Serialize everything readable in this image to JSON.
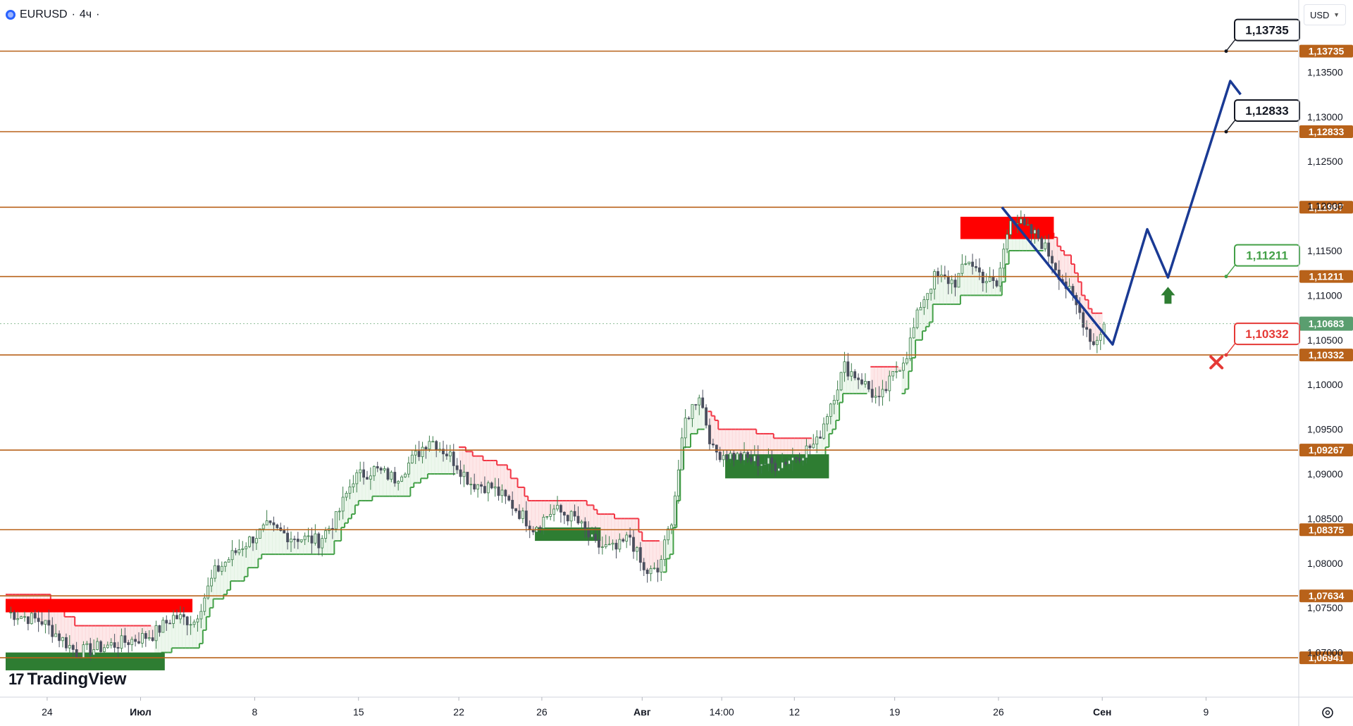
{
  "header": {
    "symbol": "EURUSD",
    "interval": "4ч",
    "currency": "USD",
    "logo_text": "TradingView",
    "logo_mark": "17"
  },
  "icons": {
    "globe": "globe-icon",
    "settings": "gear-icon",
    "caret": "chevron-down-icon",
    "arrow_up": "arrow-up-icon",
    "cross": "cross-icon"
  },
  "chart_data": {
    "type": "candlestick",
    "price_axis": {
      "min": 1.065,
      "max": 1.1415,
      "ticks": [
        "1,13500",
        "1,13000",
        "1,12500",
        "1,12000",
        "1,11500",
        "1,11000",
        "1,10500",
        "1,10000",
        "1,09500",
        "1,09000",
        "1,08500",
        "1,08000",
        "1,07500",
        "1,07000"
      ],
      "tick_values": [
        1.135,
        1.13,
        1.125,
        1.12,
        1.115,
        1.11,
        1.105,
        1.1,
        1.095,
        1.09,
        1.085,
        1.08,
        1.075,
        1.07
      ]
    },
    "time_axis": {
      "labels": [
        "24",
        "Июл",
        "8",
        "15",
        "22",
        "26",
        "Авг",
        "14:00",
        "12",
        "19",
        "26",
        "Сен",
        "9"
      ],
      "positions_in_bars": [
        12,
        39,
        72,
        102,
        131,
        155,
        184,
        207,
        228,
        257,
        287,
        317,
        347
      ]
    },
    "current_price": {
      "label": "1,10683",
      "value": 1.10683
    },
    "levels": [
      {
        "label": "1,13735",
        "value": 1.13735
      },
      {
        "label": "1,12833",
        "value": 1.12833
      },
      {
        "label": "1,11987",
        "value": 1.11987
      },
      {
        "label": "1,11211",
        "value": 1.11211
      },
      {
        "label": "1,10332",
        "value": 1.10332
      },
      {
        "label": "1,09267",
        "value": 1.09267
      },
      {
        "label": "1,08375",
        "value": 1.08375
      },
      {
        "label": "1,07634",
        "value": 1.07634
      },
      {
        "label": "1,06941",
        "value": 1.06941
      }
    ],
    "callouts": [
      {
        "label": "1,13735",
        "value": 1.13735,
        "kind": "target"
      },
      {
        "label": "1,12833",
        "value": 1.12833,
        "kind": "target"
      },
      {
        "label": "1,11211",
        "value": 1.11211,
        "kind": "entry"
      },
      {
        "label": "1,10332",
        "value": 1.10332,
        "kind": "stop"
      }
    ],
    "close_path": [
      [
        0,
        1.0745
      ],
      [
        10,
        1.0735
      ],
      [
        20,
        1.07
      ],
      [
        32,
        1.071
      ],
      [
        42,
        1.072
      ],
      [
        48,
        1.074
      ],
      [
        54,
        1.0735
      ],
      [
        60,
        1.079
      ],
      [
        68,
        1.082
      ],
      [
        75,
        1.084
      ],
      [
        82,
        1.083
      ],
      [
        90,
        1.0825
      ],
      [
        95,
        1.085
      ],
      [
        100,
        1.0895
      ],
      [
        106,
        1.0905
      ],
      [
        112,
        1.0895
      ],
      [
        118,
        1.092
      ],
      [
        122,
        1.094
      ],
      [
        128,
        1.092
      ],
      [
        134,
        1.089
      ],
      [
        140,
        1.0885
      ],
      [
        146,
        1.0865
      ],
      [
        152,
        1.084
      ],
      [
        158,
        1.086
      ],
      [
        164,
        1.085
      ],
      [
        170,
        1.082
      ],
      [
        176,
        1.0815
      ],
      [
        180,
        1.083
      ],
      [
        184,
        1.079
      ],
      [
        188,
        1.079
      ],
      [
        192,
        1.085
      ],
      [
        196,
        1.096
      ],
      [
        200,
        1.099
      ],
      [
        204,
        1.0925
      ],
      [
        210,
        1.092
      ],
      [
        216,
        1.0915
      ],
      [
        222,
        1.091
      ],
      [
        228,
        1.092
      ],
      [
        234,
        1.0935
      ],
      [
        238,
        1.098
      ],
      [
        242,
        1.102
      ],
      [
        247,
        1.1005
      ],
      [
        252,
        1.098
      ],
      [
        256,
        1.101
      ],
      [
        260,
        1.1035
      ],
      [
        264,
        1.109
      ],
      [
        268,
        1.112
      ],
      [
        274,
        1.1115
      ],
      [
        278,
        1.114
      ],
      [
        282,
        1.112
      ],
      [
        286,
        1.111
      ],
      [
        290,
        1.119
      ],
      [
        294,
        1.1175
      ],
      [
        298,
        1.1165
      ],
      [
        302,
        1.114
      ],
      [
        306,
        1.111
      ],
      [
        310,
        1.108
      ],
      [
        314,
        1.1045
      ],
      [
        317,
        1.1068
      ]
    ],
    "red_zones": [
      {
        "from_bar": 0,
        "to_bar": 54,
        "low": 1.0745,
        "high": 1.076
      },
      {
        "from_bar": 276,
        "to_bar": 303,
        "low": 1.1163,
        "high": 1.1188
      }
    ],
    "green_zones": [
      {
        "from_bar": 0,
        "to_bar": 46,
        "low": 1.068,
        "high": 1.07
      },
      {
        "from_bar": 153,
        "to_bar": 172,
        "low": 1.0825,
        "high": 1.084
      },
      {
        "from_bar": 208,
        "to_bar": 238,
        "low": 1.0895,
        "high": 1.0922
      }
    ],
    "projection": [
      [
        288,
        1.11987
      ],
      [
        320,
        1.1045
      ],
      [
        330,
        1.1174
      ],
      [
        336,
        1.112
      ],
      [
        354,
        1.134
      ],
      [
        357,
        1.1325
      ]
    ],
    "signals": [
      {
        "kind": "buy",
        "bar": 336,
        "value": 1.11
      },
      {
        "kind": "stop",
        "bar": 350,
        "value": 1.1025
      }
    ]
  }
}
